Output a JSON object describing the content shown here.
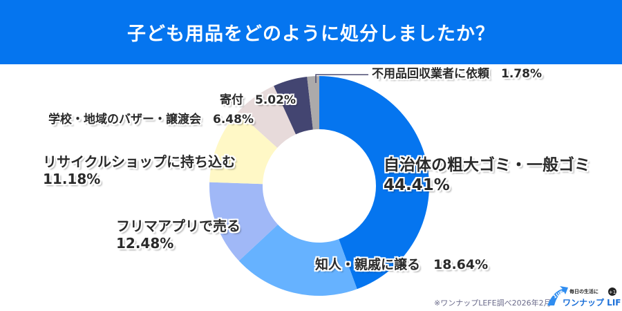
{
  "header": {
    "title": "子ども用品をどのように処分しましたか？"
  },
  "chart_data": {
    "type": "pie",
    "donut": true,
    "title": "子ども用品をどのように処分しましたか？",
    "unit": "%",
    "categories": [
      "自治体の粗大ゴミ・一般ゴミ",
      "知人・親戚に譲る",
      "フリマアプリで売る",
      "リサイクルショップに持ち込む",
      "学校・地域のバザー・譲渡会",
      "寄付",
      "不用品回収業者に依頼"
    ],
    "values": [
      44.41,
      18.64,
      12.48,
      11.18,
      6.48,
      5.02,
      1.78
    ],
    "labels": [
      "44.41%",
      "18.64%",
      "12.48%",
      "11.18%",
      "6.48%",
      "5.02%",
      "1.78%"
    ],
    "colors": [
      "#0575ef",
      "#66b2ff",
      "#a0b8f7",
      "#fff8c6",
      "#e7dada",
      "#434571",
      "#acaaaa"
    ],
    "start": "top",
    "direction": "clockwise",
    "legend": "none"
  },
  "footnote": "※ワンナップLEFE調べ2026年2月",
  "logo": {
    "badge": "1UP",
    "brand": "ワンナップ LIFE",
    "tagline": "毎日の生活に",
    "plus": "+1"
  }
}
